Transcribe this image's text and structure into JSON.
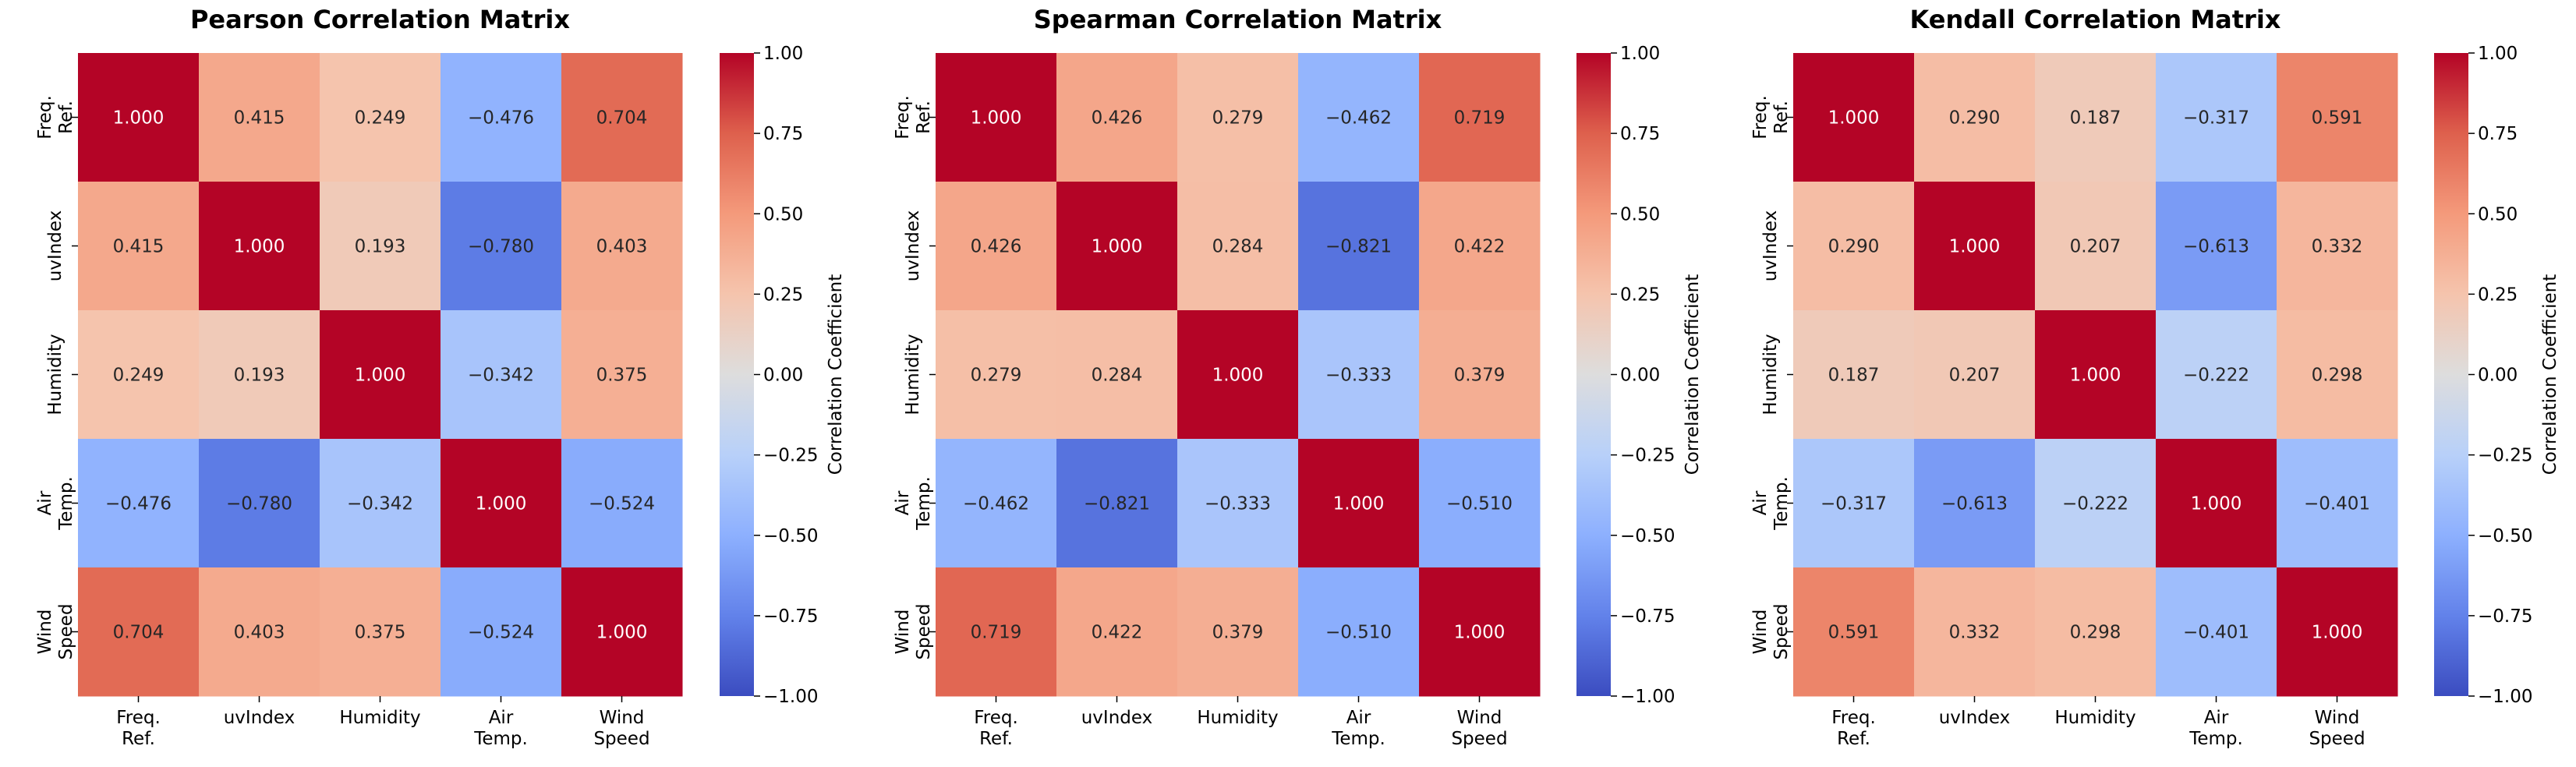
{
  "figure": {
    "background": "#ffffff"
  },
  "chart_data": [
    {
      "type": "heatmap",
      "title": "Pearson Correlation Matrix",
      "x_labels": [
        "Freq.\nRef.",
        "uvIndex",
        "Humidity",
        "Air\nTemp.",
        "Wind\nSpeed"
      ],
      "y_labels": [
        "Freq.\nRef.",
        "uvIndex",
        "Humidity",
        "Air\nTemp.",
        "Wind\nSpeed"
      ],
      "values": [
        [
          1.0,
          0.415,
          0.249,
          -0.476,
          0.704
        ],
        [
          0.415,
          1.0,
          0.193,
          -0.78,
          0.403
        ],
        [
          0.249,
          0.193,
          1.0,
          -0.342,
          0.375
        ],
        [
          -0.476,
          -0.78,
          -0.342,
          1.0,
          -0.524
        ],
        [
          0.704,
          0.403,
          0.375,
          -0.524,
          1.0
        ]
      ],
      "value_format": "3 decimals",
      "colormap": "coolwarm",
      "vmin": -1.0,
      "vmax": 1.0,
      "colorbar": {
        "label": "Correlation Coefficient",
        "ticks": [
          -1.0,
          -0.75,
          -0.5,
          -0.25,
          0.0,
          0.25,
          0.5,
          0.75,
          1.0
        ],
        "tick_labels": [
          "−1.00",
          "−0.75",
          "−0.50",
          "−0.25",
          "0.00",
          "0.25",
          "0.50",
          "0.75",
          "1.00"
        ]
      }
    },
    {
      "type": "heatmap",
      "title": "Spearman Correlation Matrix",
      "x_labels": [
        "Freq.\nRef.",
        "uvIndex",
        "Humidity",
        "Air\nTemp.",
        "Wind\nSpeed"
      ],
      "y_labels": [
        "Freq.\nRef.",
        "uvIndex",
        "Humidity",
        "Air\nTemp.",
        "Wind\nSpeed"
      ],
      "values": [
        [
          1.0,
          0.426,
          0.279,
          -0.462,
          0.719
        ],
        [
          0.426,
          1.0,
          0.284,
          -0.821,
          0.422
        ],
        [
          0.279,
          0.284,
          1.0,
          -0.333,
          0.379
        ],
        [
          -0.462,
          -0.821,
          -0.333,
          1.0,
          -0.51
        ],
        [
          0.719,
          0.422,
          0.379,
          -0.51,
          1.0
        ]
      ],
      "value_format": "3 decimals",
      "colormap": "coolwarm",
      "vmin": -1.0,
      "vmax": 1.0,
      "colorbar": {
        "label": "Correlation Coefficient",
        "ticks": [
          -1.0,
          -0.75,
          -0.5,
          -0.25,
          0.0,
          0.25,
          0.5,
          0.75,
          1.0
        ],
        "tick_labels": [
          "−1.00",
          "−0.75",
          "−0.50",
          "−0.25",
          "0.00",
          "0.25",
          "0.50",
          "0.75",
          "1.00"
        ]
      }
    },
    {
      "type": "heatmap",
      "title": "Kendall Correlation Matrix",
      "x_labels": [
        "Freq.\nRef.",
        "uvIndex",
        "Humidity",
        "Air\nTemp.",
        "Wind\nSpeed"
      ],
      "y_labels": [
        "Freq.\nRef.",
        "uvIndex",
        "Humidity",
        "Air\nTemp.",
        "Wind\nSpeed"
      ],
      "values": [
        [
          1.0,
          0.29,
          0.187,
          -0.317,
          0.591
        ],
        [
          0.29,
          1.0,
          0.207,
          -0.613,
          0.332
        ],
        [
          0.187,
          0.207,
          1.0,
          -0.222,
          0.298
        ],
        [
          -0.317,
          -0.613,
          -0.222,
          1.0,
          -0.401
        ],
        [
          0.591,
          0.332,
          0.298,
          -0.401,
          1.0
        ]
      ],
      "value_format": "3 decimals",
      "colormap": "coolwarm",
      "vmin": -1.0,
      "vmax": 1.0,
      "colorbar": {
        "label": "Correlation Coefficient",
        "ticks": [
          -1.0,
          -0.75,
          -0.5,
          -0.25,
          0.0,
          0.25,
          0.5,
          0.75,
          1.0
        ],
        "tick_labels": [
          "−1.00",
          "−0.75",
          "−0.50",
          "−0.25",
          "0.00",
          "0.25",
          "0.50",
          "0.75",
          "1.00"
        ]
      }
    }
  ]
}
